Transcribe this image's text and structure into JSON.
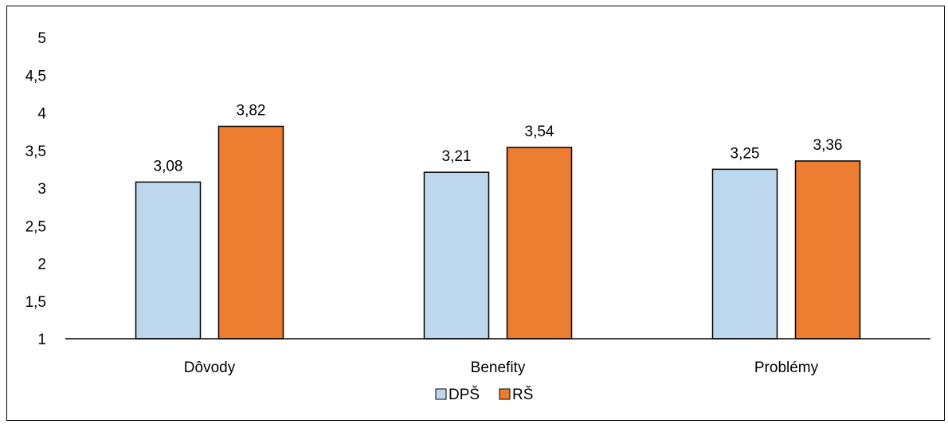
{
  "chart_data": {
    "type": "bar",
    "categories": [
      "Dôvody",
      "Benefity",
      "Problémy"
    ],
    "series": [
      {
        "name": "DPŠ",
        "values": [
          3.08,
          3.21,
          3.25
        ],
        "color": "#BDD7EE",
        "labels": [
          "3,08",
          "3,21",
          "3,25"
        ]
      },
      {
        "name": "RŠ",
        "values": [
          3.82,
          3.54,
          3.36
        ],
        "color": "#ED7D31",
        "labels": [
          "3,82",
          "3,54",
          "3,36"
        ]
      }
    ],
    "ylim": [
      1,
      5
    ],
    "yticks": [
      {
        "value": 1,
        "label": "1"
      },
      {
        "value": 1.5,
        "label": "1,5"
      },
      {
        "value": 2,
        "label": "2"
      },
      {
        "value": 2.5,
        "label": "2,5"
      },
      {
        "value": 3,
        "label": "3"
      },
      {
        "value": 3.5,
        "label": "3,5"
      },
      {
        "value": 4,
        "label": "4"
      },
      {
        "value": 4.5,
        "label": "4,5"
      },
      {
        "value": 5,
        "label": "5"
      }
    ],
    "grid": false,
    "legend": "bottom",
    "title": "",
    "xlabel": "",
    "ylabel": ""
  }
}
